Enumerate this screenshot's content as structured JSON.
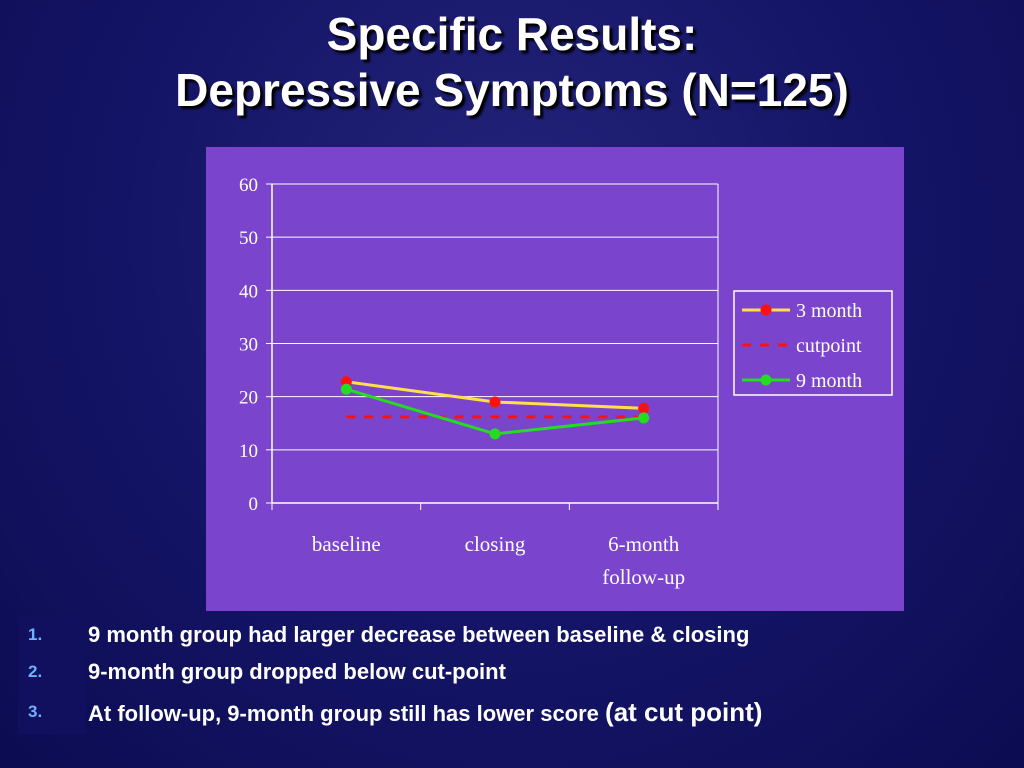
{
  "slide": {
    "title_line1": "Specific Results:",
    "title_line2": "Depressive Symptoms (N=125)"
  },
  "chart_data": {
    "type": "line",
    "categories": [
      "baseline",
      "closing",
      "6-month follow-up"
    ],
    "category_labels": [
      [
        "baseline"
      ],
      [
        "closing"
      ],
      [
        "6-month",
        "follow-up"
      ]
    ],
    "ylim": [
      0,
      60
    ],
    "yticks": [
      0,
      10,
      20,
      30,
      40,
      50,
      60
    ],
    "grid": true,
    "legend_position": "right",
    "series": [
      {
        "name": "3 month",
        "values": [
          22.8,
          19.0,
          17.8
        ],
        "line_color": "#ffe04a",
        "marker_color": "#ff1010",
        "style": "solid",
        "marker": true
      },
      {
        "name": "cutpoint",
        "values": [
          16.2,
          16.2,
          16.2
        ],
        "line_color": "#ff1010",
        "style": "dashed",
        "marker": false
      },
      {
        "name": "9 month",
        "values": [
          21.4,
          13.0,
          16.0
        ],
        "line_color": "#22dd22",
        "marker_color": "#22dd22",
        "style": "solid",
        "marker": true
      }
    ]
  },
  "bullets": [
    {
      "num": "1.",
      "text": "9 month group had larger decrease between baseline & closing",
      "extra": ""
    },
    {
      "num": "2.",
      "text": "9-month group dropped below cut-point",
      "extra": ""
    },
    {
      "num": "3.",
      "text": "At follow-up, 9-month group still has lower score",
      "extra": "(at cut point)"
    }
  ],
  "colors": {
    "background": "#141466",
    "panel": "#7b44cc",
    "text": "#ffffff",
    "bullet_number": "#6fb0ff"
  }
}
